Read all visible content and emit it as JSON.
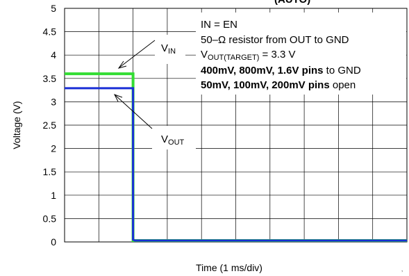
{
  "chart_data": {
    "type": "line",
    "title": "",
    "xlabel": "Time (1 ms/div)",
    "ylabel": "Voltage (V)",
    "ylim": [
      0,
      5
    ],
    "xlim": [
      0,
      10
    ],
    "x_divisions": 10,
    "y_ticks": [
      "0",
      "0.5",
      "1",
      "1.5",
      "2",
      "2.5",
      "3",
      "3.5",
      "4",
      "4.5",
      "5"
    ],
    "grid": true,
    "series": [
      {
        "name": "VIN",
        "color": "#33dd33",
        "x": [
          0,
          2,
          2,
          2.05,
          10
        ],
        "y": [
          3.6,
          3.6,
          0.03,
          0.03,
          0.03
        ]
      },
      {
        "name": "VOUT",
        "color": "#1a2fd6",
        "x": [
          0,
          2,
          2,
          2.05,
          10
        ],
        "y": [
          3.29,
          3.29,
          0.05,
          0.03,
          0.03
        ]
      }
    ],
    "labels": {
      "vin": {
        "main": "V",
        "sub": "IN"
      },
      "vout": {
        "main": "V",
        "sub": "OUT"
      }
    },
    "annotation": {
      "line1": "IN = EN",
      "line2": "50–Ω resistor from OUT to GND",
      "line3_main": "V",
      "line3_sub": "OUT(TARGET)",
      "line3_rest": " = 3.3 V",
      "line4_bold": "400mV, 800mV, 1.6V pins",
      "line4_rest": " to GND",
      "line5_bold": "50mV, 100mV, 200mV pins",
      "line5_rest": " open"
    },
    "partial_title_text": "(AUTO)",
    "corner_mark": "’"
  }
}
